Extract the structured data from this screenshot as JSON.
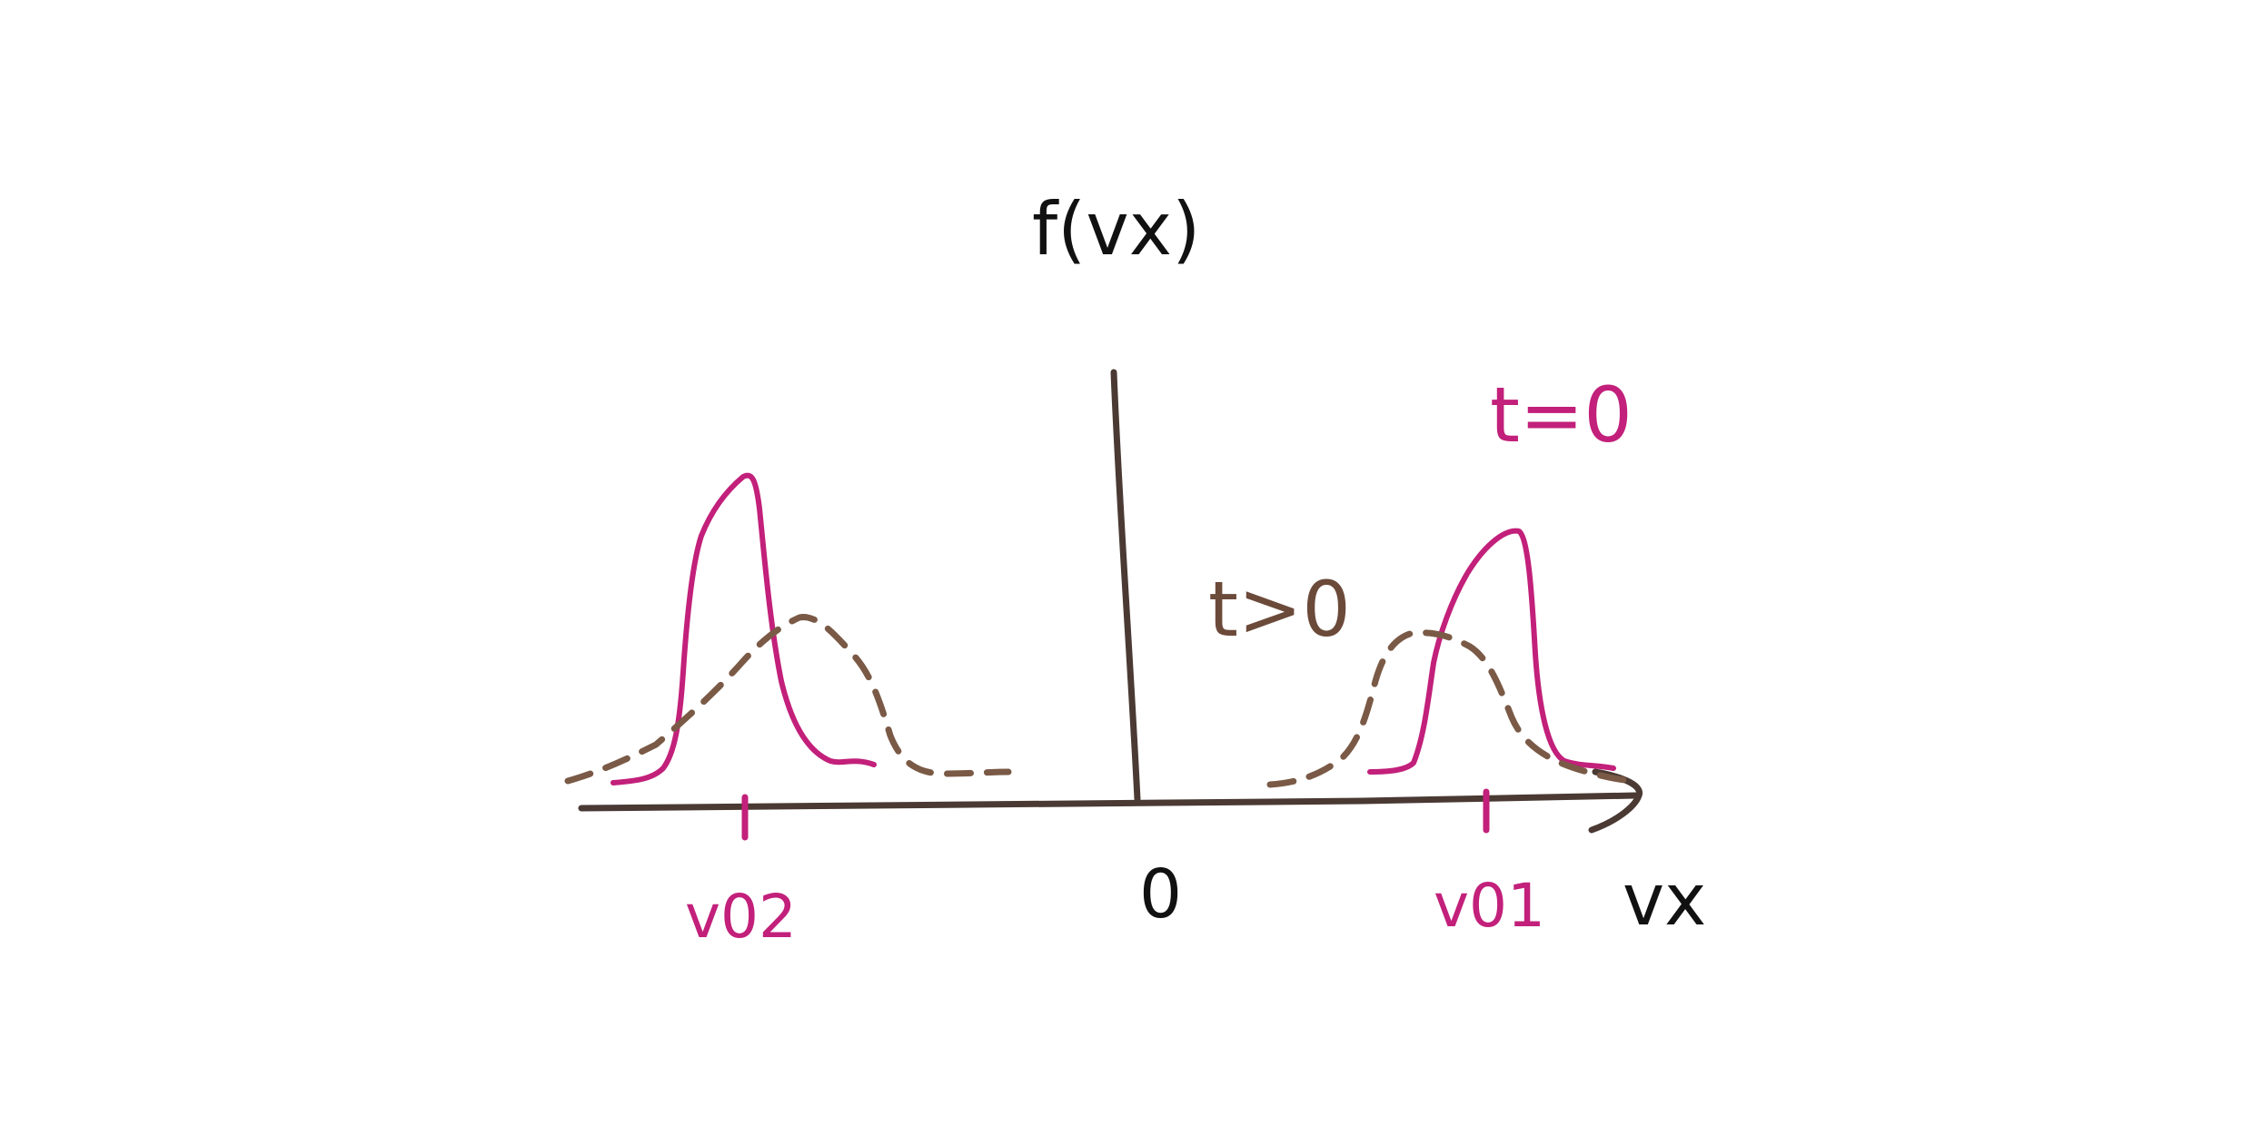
{
  "labels": {
    "y_axis": "f(vx)",
    "x_axis": "vx",
    "origin": "0",
    "time_initial": "t=0",
    "time_later": "t>0",
    "beam_1": "v01",
    "beam_2": "v02"
  },
  "colors": {
    "axis": "#4a3a33",
    "initial_distribution": "#c2207a",
    "later_distribution": "#7a5a46",
    "text": "#111111"
  }
}
